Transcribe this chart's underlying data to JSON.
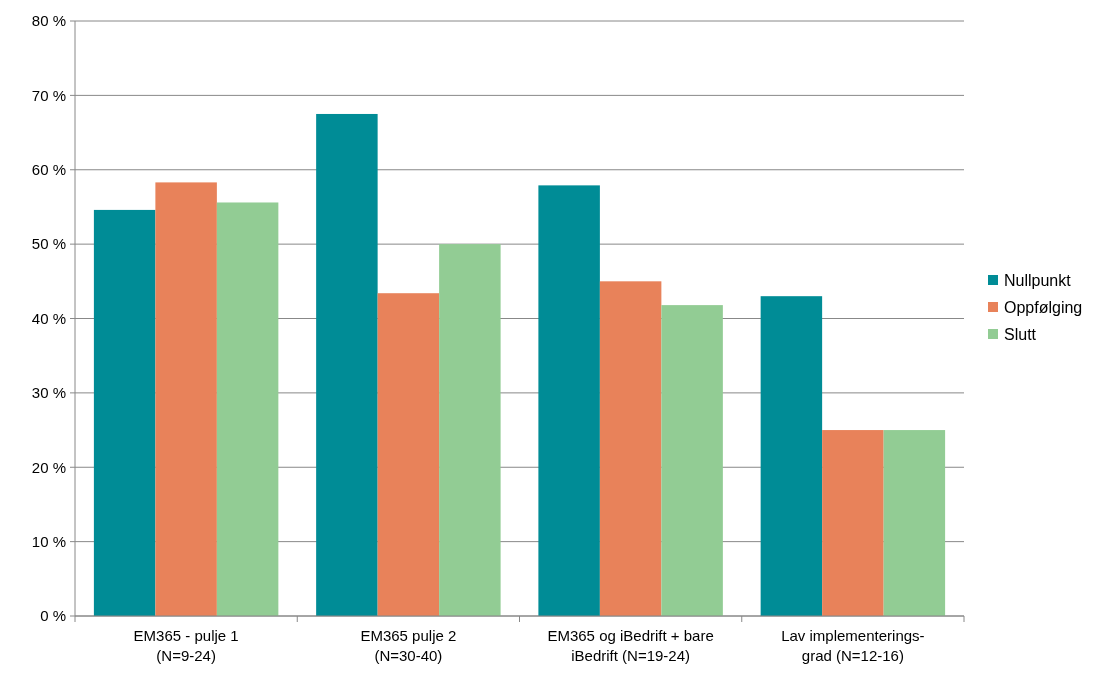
{
  "chart_data": {
    "type": "bar",
    "categories": [
      "EM365 - pulje 1\n(N=9-24)",
      "EM365 pulje 2\n(N=30-40)",
      "EM365 og iBedrift + bare\niBedrift (N=19-24)",
      "Lav implementerings-\ngrad (N=12-16)"
    ],
    "series": [
      {
        "name": "Nullpunkt",
        "color": "#008c96",
        "values": [
          54.6,
          67.5,
          57.9,
          43.0
        ]
      },
      {
        "name": "Oppfølging",
        "color": "#e8825a",
        "values": [
          58.3,
          43.4,
          45.0,
          25.0
        ]
      },
      {
        "name": "Slutt",
        "color": "#92cc94",
        "values": [
          55.6,
          50.0,
          41.8,
          25.0
        ]
      }
    ],
    "ylim": [
      0,
      80
    ],
    "yticks": [
      {
        "value": 0,
        "label": "0 %"
      },
      {
        "value": 10,
        "label": "10 %"
      },
      {
        "value": 20,
        "label": "20 %"
      },
      {
        "value": 30,
        "label": "30 %"
      },
      {
        "value": 40,
        "label": "40 %"
      },
      {
        "value": 50,
        "label": "50 %"
      },
      {
        "value": 60,
        "label": "60 %"
      },
      {
        "value": 70,
        "label": "70 %"
      },
      {
        "value": 80,
        "label": "80 %"
      }
    ],
    "grid": "y",
    "legend": "right"
  }
}
